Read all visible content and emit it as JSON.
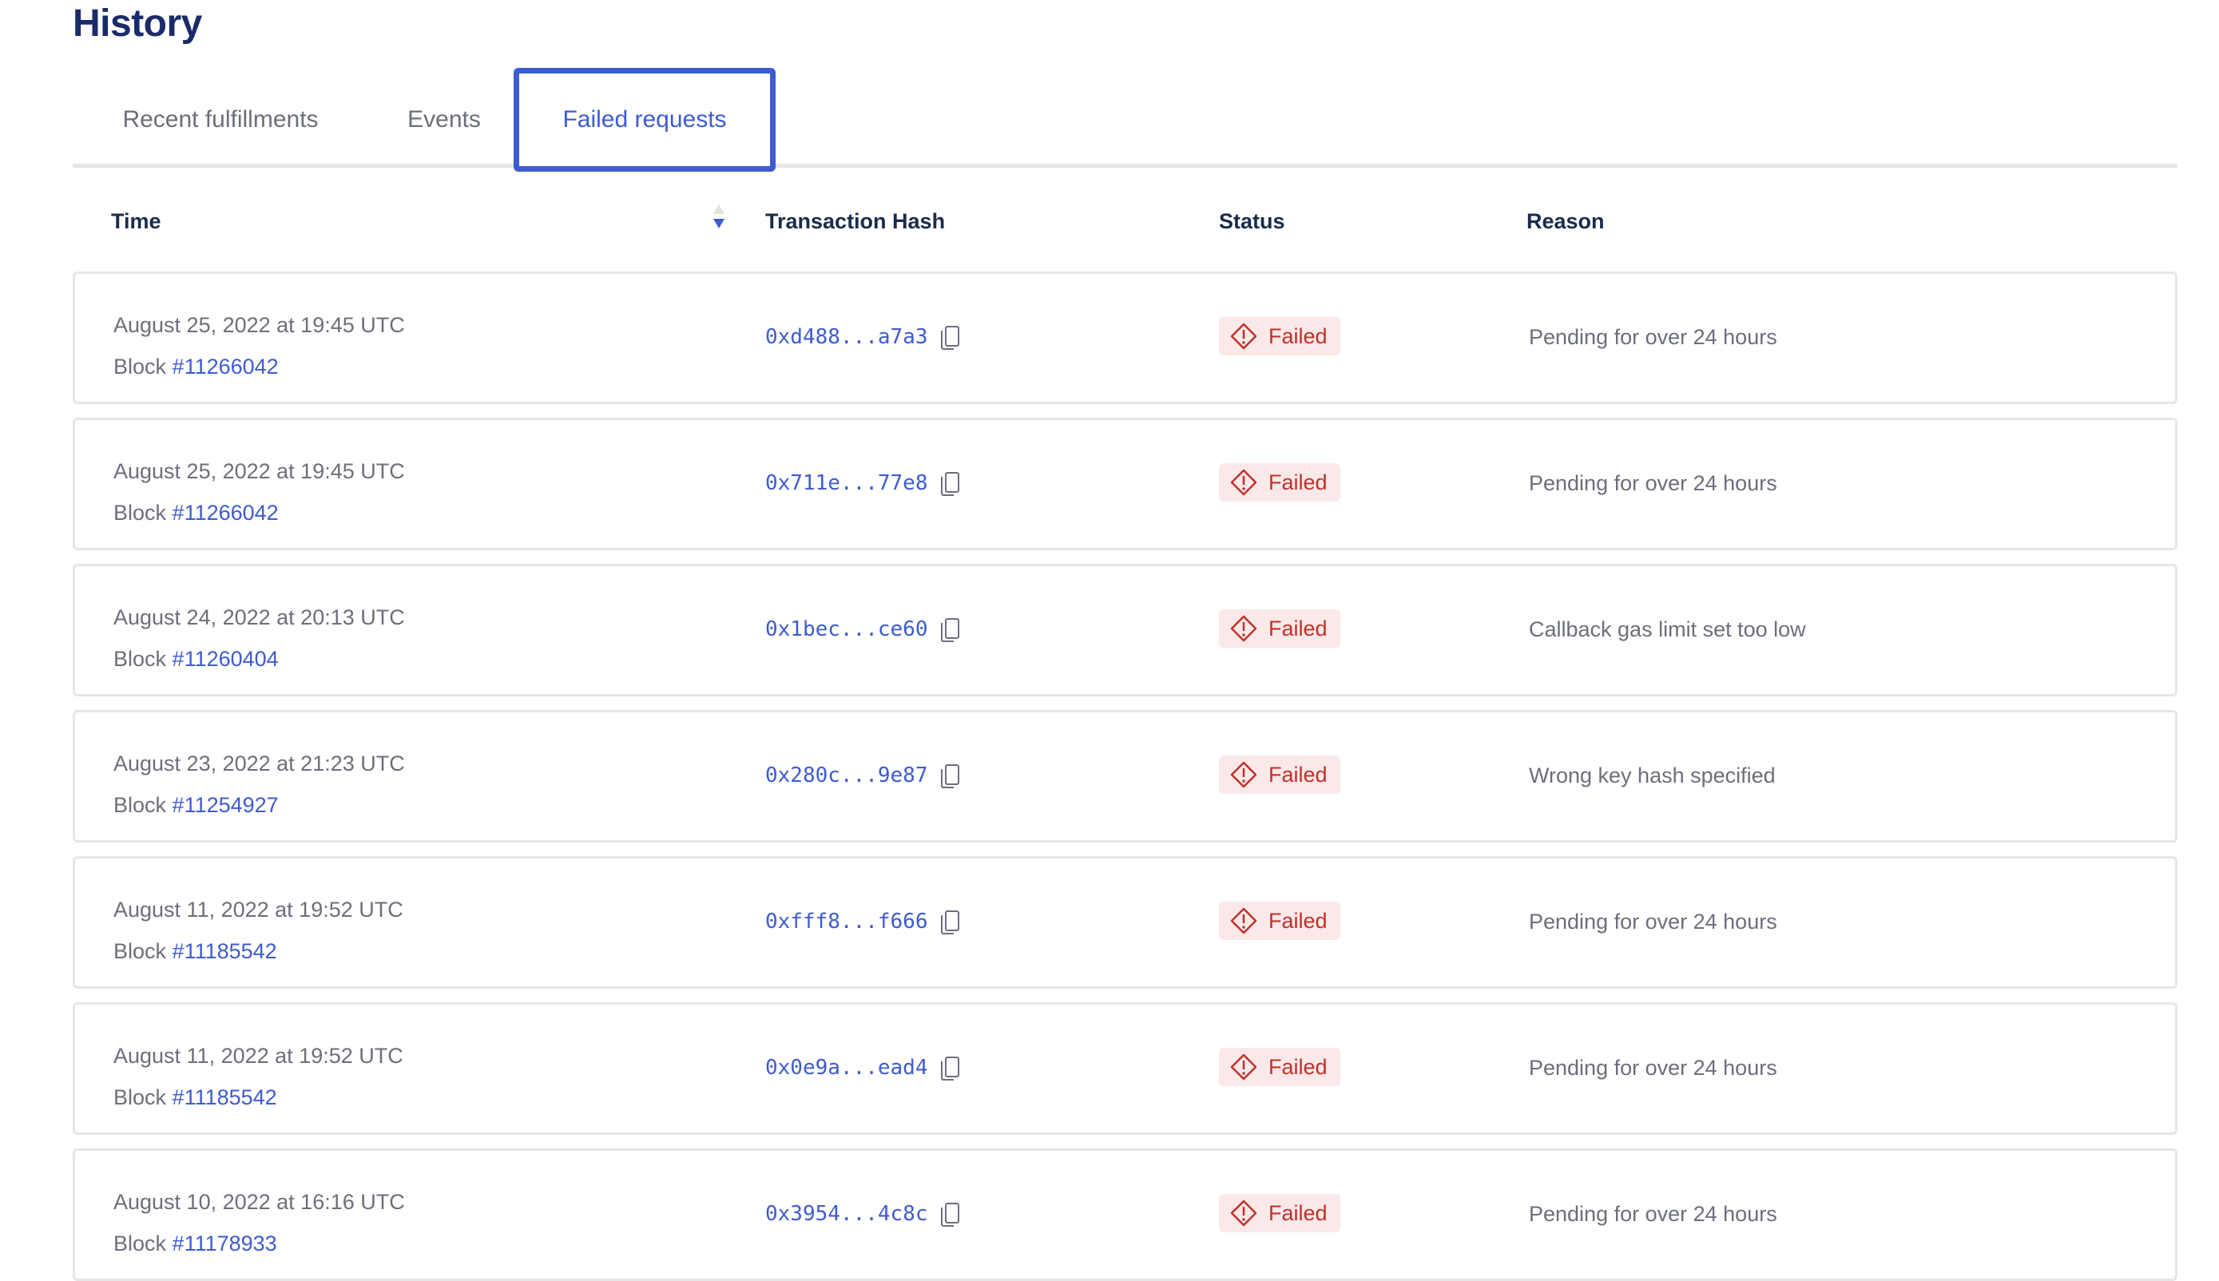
{
  "title": "History",
  "tabs": [
    {
      "label": "Recent fulfillments"
    },
    {
      "label": "Events"
    },
    {
      "label": "Failed requests",
      "active": true
    }
  ],
  "columns": {
    "time": "Time",
    "hash": "Transaction Hash",
    "status": "Status",
    "reason": "Reason"
  },
  "sort": {
    "column": "Time",
    "direction": "descending"
  },
  "colors": {
    "accent": "#3f5bd0",
    "failed": "#c0312b",
    "failed_bg": "#fbe8e8",
    "heading": "#1a2b6b"
  },
  "rows": [
    {
      "time": "August 25, 2022 at 19:45 UTC",
      "block_label": "Block",
      "block": "#11266042",
      "hash": "0xd488...a7a3",
      "status": "Failed",
      "reason": "Pending for over 24 hours"
    },
    {
      "time": "August 25, 2022 at 19:45 UTC",
      "block_label": "Block",
      "block": "#11266042",
      "hash": "0x711e...77e8",
      "status": "Failed",
      "reason": "Pending for over 24 hours"
    },
    {
      "time": "August 24, 2022 at 20:13 UTC",
      "block_label": "Block",
      "block": "#11260404",
      "hash": "0x1bec...ce60",
      "status": "Failed",
      "reason": "Callback gas limit set too low"
    },
    {
      "time": "August 23, 2022 at 21:23 UTC",
      "block_label": "Block",
      "block": "#11254927",
      "hash": "0x280c...9e87",
      "status": "Failed",
      "reason": "Wrong key hash specified"
    },
    {
      "time": "August 11, 2022 at 19:52 UTC",
      "block_label": "Block",
      "block": "#11185542",
      "hash": "0xfff8...f666",
      "status": "Failed",
      "reason": "Pending for over 24 hours"
    },
    {
      "time": "August 11, 2022 at 19:52 UTC",
      "block_label": "Block",
      "block": "#11185542",
      "hash": "0x0e9a...ead4",
      "status": "Failed",
      "reason": "Pending for over 24 hours"
    },
    {
      "time": "August 10, 2022 at 16:16 UTC",
      "block_label": "Block",
      "block": "#11178933",
      "hash": "0x3954...4c8c",
      "status": "Failed",
      "reason": "Pending for over 24 hours"
    }
  ]
}
